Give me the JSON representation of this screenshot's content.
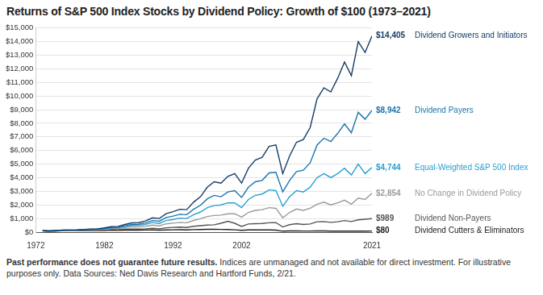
{
  "chart_data": {
    "type": "line",
    "title": "Returns of S&P 500 Index Stocks by Dividend Policy: Growth of $100 (1973–2021)",
    "annotations": [
      "Past performance does not guarantee future results.",
      "Indices are unmanaged and not available for direct investment. For illustrative purposes only. Data Sources: Ned Davis Research and Hartford Funds, 2/21."
    ],
    "x": [
      1973,
      1974,
      1975,
      1976,
      1977,
      1978,
      1979,
      1980,
      1981,
      1982,
      1983,
      1984,
      1985,
      1986,
      1987,
      1988,
      1989,
      1990,
      1991,
      1992,
      1993,
      1994,
      1995,
      1996,
      1997,
      1998,
      1999,
      2000,
      2001,
      2002,
      2003,
      2004,
      2005,
      2006,
      2007,
      2008,
      2009,
      2010,
      2011,
      2012,
      2013,
      2014,
      2015,
      2016,
      2017,
      2018,
      2019,
      2020,
      2021
    ],
    "series": [
      {
        "name": "Dividend Growers and Initiators",
        "color": "#163d66",
        "values": [
          100,
          85,
          115,
          150,
          155,
          165,
          190,
          230,
          240,
          310,
          400,
          420,
          560,
          680,
          700,
          820,
          1050,
          1000,
          1350,
          1500,
          1680,
          1650,
          2200,
          2600,
          3300,
          3700,
          3600,
          4100,
          4300,
          3600,
          4700,
          5300,
          5500,
          6300,
          6400,
          4300,
          5600,
          6600,
          6800,
          7700,
          9800,
          10600,
          10300,
          11300,
          12500,
          11500,
          14000,
          13200,
          14405
        ],
        "value_labels": [
          null,
          null,
          null,
          null,
          null,
          null,
          null,
          null,
          null,
          null,
          null,
          null,
          null,
          null,
          null,
          null,
          null,
          null,
          null,
          null,
          null,
          null,
          null,
          null,
          null,
          null,
          null,
          null,
          null,
          null,
          null,
          null,
          null,
          null,
          null,
          null,
          null,
          null,
          null,
          null,
          null,
          null,
          null,
          null,
          null,
          null,
          null,
          null,
          "$14,405"
        ]
      },
      {
        "name": "Dividend Payers",
        "color": "#1b75ab",
        "values": [
          100,
          85,
          112,
          145,
          148,
          155,
          175,
          205,
          212,
          270,
          345,
          360,
          470,
          560,
          575,
          670,
          850,
          800,
          1070,
          1180,
          1310,
          1280,
          1680,
          1970,
          2450,
          2700,
          2600,
          2950,
          3050,
          2550,
          3300,
          3700,
          3800,
          4350,
          4400,
          2950,
          3800,
          4450,
          4550,
          5100,
          6400,
          6900,
          6650,
          7250,
          7950,
          7300,
          8800,
          8300,
          8942
        ],
        "value_labels": [
          null,
          null,
          null,
          null,
          null,
          null,
          null,
          null,
          null,
          null,
          null,
          null,
          null,
          null,
          null,
          null,
          null,
          null,
          null,
          null,
          null,
          null,
          null,
          null,
          null,
          null,
          null,
          null,
          null,
          null,
          null,
          null,
          null,
          null,
          null,
          null,
          null,
          null,
          null,
          null,
          null,
          null,
          null,
          null,
          null,
          null,
          null,
          null,
          "$8,942"
        ]
      },
      {
        "name": "Equal-Weighted S&P 500 Index",
        "color": "#2a9fd2",
        "values": [
          100,
          78,
          105,
          135,
          138,
          148,
          170,
          200,
          205,
          250,
          320,
          330,
          420,
          490,
          495,
          570,
          700,
          640,
          850,
          930,
          1030,
          1000,
          1280,
          1480,
          1800,
          1950,
          2000,
          2150,
          2150,
          1800,
          2400,
          2700,
          2800,
          3100,
          3050,
          1900,
          2600,
          3050,
          2950,
          3300,
          4000,
          4300,
          4000,
          4300,
          4700,
          4200,
          5000,
          4300,
          4744
        ],
        "value_labels": [
          null,
          null,
          null,
          null,
          null,
          null,
          null,
          null,
          null,
          null,
          null,
          null,
          null,
          null,
          null,
          null,
          null,
          null,
          null,
          null,
          null,
          null,
          null,
          null,
          null,
          null,
          null,
          null,
          null,
          null,
          null,
          null,
          null,
          null,
          null,
          null,
          null,
          null,
          null,
          null,
          null,
          null,
          null,
          null,
          null,
          null,
          null,
          null,
          "$4,744"
        ]
      },
      {
        "name": "No Change in Dividend Policy",
        "color": "#9a9a9a",
        "values": [
          100,
          72,
          95,
          120,
          120,
          128,
          145,
          170,
          172,
          205,
          260,
          265,
          330,
          380,
          380,
          430,
          520,
          460,
          610,
          660,
          720,
          690,
          860,
          980,
          1150,
          1220,
          1250,
          1350,
          1350,
          1100,
          1450,
          1600,
          1650,
          1800,
          1750,
          1050,
          1450,
          1700,
          1600,
          1750,
          2050,
          2200,
          2000,
          2150,
          2350,
          2050,
          2500,
          2400,
          2854
        ],
        "value_labels": [
          null,
          null,
          null,
          null,
          null,
          null,
          null,
          null,
          null,
          null,
          null,
          null,
          null,
          null,
          null,
          null,
          null,
          null,
          null,
          null,
          null,
          null,
          null,
          null,
          null,
          null,
          null,
          null,
          null,
          null,
          null,
          null,
          null,
          null,
          null,
          null,
          null,
          null,
          null,
          null,
          null,
          null,
          null,
          null,
          null,
          null,
          null,
          null,
          "$2,854"
        ]
      },
      {
        "name": "Dividend Non-Payers",
        "color": "#555555",
        "values": [
          100,
          60,
          80,
          100,
          105,
          110,
          130,
          160,
          150,
          160,
          200,
          180,
          220,
          230,
          220,
          240,
          280,
          240,
          320,
          350,
          370,
          340,
          430,
          470,
          520,
          540,
          650,
          800,
          650,
          420,
          600,
          620,
          640,
          690,
          700,
          380,
          550,
          620,
          560,
          600,
          760,
          780,
          720,
          760,
          850,
          780,
          900,
          950,
          989
        ],
        "value_labels": [
          null,
          null,
          null,
          null,
          null,
          null,
          null,
          null,
          null,
          null,
          null,
          null,
          null,
          null,
          null,
          null,
          null,
          null,
          null,
          null,
          null,
          null,
          null,
          null,
          null,
          null,
          null,
          null,
          null,
          null,
          null,
          null,
          null,
          null,
          null,
          null,
          null,
          null,
          null,
          null,
          null,
          null,
          null,
          null,
          null,
          null,
          null,
          null,
          "$989"
        ]
      },
      {
        "name": "Dividend Cutters & Eliminators",
        "color": "#222222",
        "values": [
          100,
          70,
          90,
          110,
          110,
          105,
          110,
          115,
          110,
          120,
          140,
          135,
          150,
          160,
          150,
          155,
          165,
          140,
          160,
          170,
          175,
          165,
          185,
          195,
          210,
          205,
          200,
          190,
          170,
          130,
          160,
          165,
          160,
          165,
          150,
          70,
          85,
          90,
          80,
          80,
          85,
          85,
          75,
          75,
          78,
          70,
          72,
          70,
          80
        ],
        "value_labels": [
          null,
          null,
          null,
          null,
          null,
          null,
          null,
          null,
          null,
          null,
          null,
          null,
          null,
          null,
          null,
          null,
          null,
          null,
          null,
          null,
          null,
          null,
          null,
          null,
          null,
          null,
          null,
          null,
          null,
          null,
          null,
          null,
          null,
          null,
          null,
          null,
          null,
          null,
          null,
          null,
          null,
          null,
          null,
          null,
          null,
          null,
          null,
          null,
          "$80"
        ]
      }
    ],
    "xlim": [
      1972,
      2021
    ],
    "xticks": [
      1972,
      1982,
      1992,
      2002,
      2021
    ],
    "ylim": [
      0,
      15000
    ],
    "yticks": [
      {
        "value": 0,
        "label": "$0"
      },
      {
        "value": 1000,
        "label": "$1,000"
      },
      {
        "value": 2000,
        "label": "$2,000"
      },
      {
        "value": 3000,
        "label": "$3,000"
      },
      {
        "value": 4000,
        "label": "$4,000"
      },
      {
        "value": 5000,
        "label": "$5,000"
      },
      {
        "value": 6000,
        "label": "$6,000"
      },
      {
        "value": 7000,
        "label": "$7,000"
      },
      {
        "value": 8000,
        "label": "$8,000"
      },
      {
        "value": 9000,
        "label": "$9,000"
      },
      {
        "value": 10000,
        "label": "$10,000"
      },
      {
        "value": 11000,
        "label": "$11,000"
      },
      {
        "value": 12000,
        "label": "$12,000"
      },
      {
        "value": 13000,
        "label": "$13,000"
      },
      {
        "value": 14000,
        "label": "$14,000"
      },
      {
        "value": 15000,
        "label": "$15,000"
      }
    ],
    "grid": "y"
  }
}
